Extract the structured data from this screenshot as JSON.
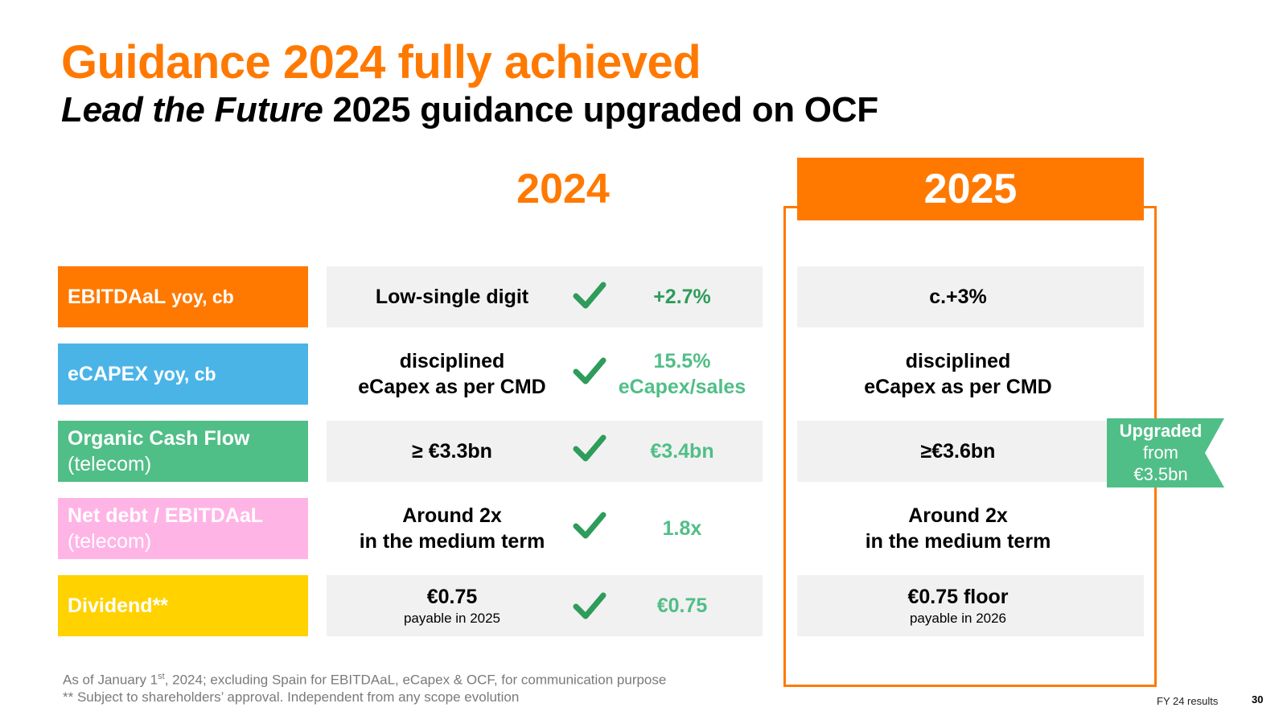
{
  "title": "Guidance 2024 fully achieved",
  "subtitle": {
    "italic": "Lead the Future",
    "rest": "2025 guidance upgraded on OCF"
  },
  "columns": {
    "year_2024": "2024",
    "year_2025": "2025"
  },
  "rows": [
    {
      "label": "EBITDAaL",
      "label_suffix": "yoy, cb",
      "label_sub": "",
      "target_2024": [
        "Low-single digit"
      ],
      "actual_2024": [
        "+2.7%"
      ],
      "guidance_2025": [
        "c.+3%"
      ]
    },
    {
      "label": "eCAPEX",
      "label_suffix": "yoy, cb",
      "label_sub": "",
      "target_2024": [
        "disciplined",
        "eCapex as per CMD"
      ],
      "actual_2024": [
        "15.5%",
        "eCapex/sales"
      ],
      "guidance_2025": [
        "disciplined",
        "eCapex as per CMD"
      ]
    },
    {
      "label": "Organic Cash Flow",
      "label_suffix": "",
      "label_sub": "(telecom)",
      "target_2024": [
        "≥ €3.3bn"
      ],
      "actual_2024": [
        "€3.4bn"
      ],
      "guidance_2025": [
        "≥€3.6bn"
      ]
    },
    {
      "label": "Net debt / EBITDAaL",
      "label_suffix": "",
      "label_sub": "(telecom)",
      "target_2024": [
        "Around 2x",
        "in the medium term"
      ],
      "actual_2024": [
        "1.8x"
      ],
      "guidance_2025": [
        "Around 2x",
        "in the medium term"
      ]
    },
    {
      "label": "Dividend**",
      "label_suffix": "",
      "label_sub": "",
      "target_2024": [
        "€0.75"
      ],
      "target_2024_note": "payable in 2025",
      "actual_2024": [
        "€0.75"
      ],
      "guidance_2025": [
        "€0.75 floor"
      ],
      "guidance_2025_note": "payable in 2026"
    }
  ],
  "upgraded_badge": {
    "title": "Upgraded",
    "line1": "from",
    "line2": "€3.5bn"
  },
  "footnotes": {
    "line1_pre": "As of January 1",
    "line1_sup": "st",
    "line1_post": ", 2024; excluding Spain for EBITDAaL, eCapex & OCF, for communication purpose",
    "line2": "** Subject to shareholders’ approval. Independent from any scope evolution"
  },
  "footer": {
    "label": "FY 24 results",
    "page": "30"
  },
  "colors": {
    "orange": "#ff7900",
    "blue": "#4bb4e6",
    "green": "#50be87",
    "pink": "#ffb4e6",
    "yellow": "#ffd200",
    "check_green": "#2e9c5a",
    "grey": "#f1f1f1"
  }
}
